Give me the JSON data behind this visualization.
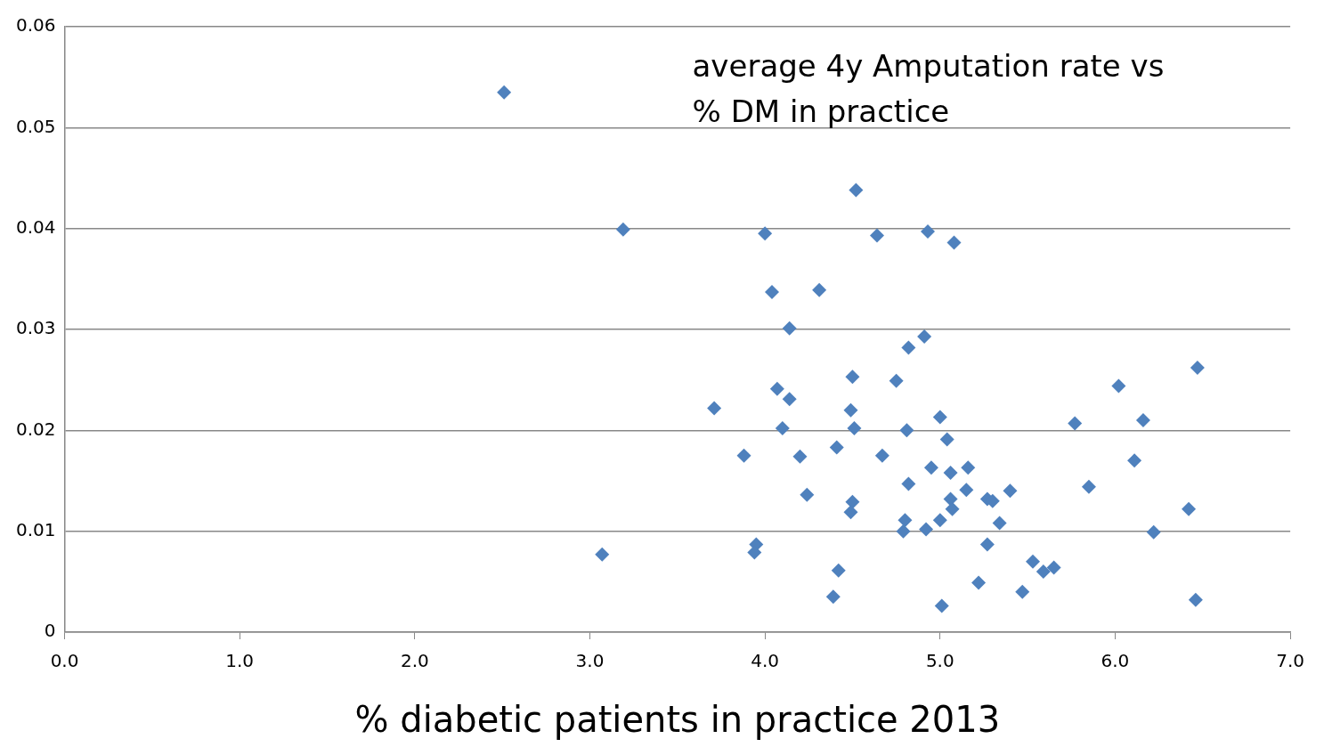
{
  "chart_data": {
    "type": "scatter",
    "title": "average 4y Amputation rate vs\n% DM in practice",
    "xlabel": "% diabetic patients in practice 2013",
    "series": [
      {
        "color": "#4f81bd",
        "x": [
          2.51,
          3.19,
          3.07,
          3.71,
          3.88,
          4.0,
          4.04,
          4.31,
          4.14,
          4.07,
          4.14,
          4.1,
          4.2,
          4.24,
          3.95,
          3.94,
          4.42,
          4.39,
          4.41,
          4.52,
          4.5,
          4.49,
          4.51,
          4.5,
          4.49,
          4.64,
          4.93,
          5.08,
          4.91,
          4.82,
          4.75,
          4.67,
          4.81,
          4.82,
          4.8,
          4.79,
          4.92,
          5.0,
          5.0,
          5.04,
          4.95,
          5.06,
          5.16,
          5.15,
          5.06,
          5.07,
          5.27,
          5.3,
          5.4,
          5.34,
          5.27,
          5.22,
          5.01,
          5.47,
          5.53,
          5.59,
          5.65,
          5.77,
          5.85,
          6.02,
          6.16,
          6.11,
          6.22,
          6.42,
          6.47,
          6.46
        ],
        "values": [
          0.0535,
          0.0399,
          0.0077,
          0.0222,
          0.0175,
          0.0395,
          0.0337,
          0.0339,
          0.0301,
          0.0241,
          0.0231,
          0.0202,
          0.0174,
          0.0136,
          0.0087,
          0.0079,
          0.0061,
          0.0035,
          0.0183,
          0.0438,
          0.0253,
          0.022,
          0.0202,
          0.0129,
          0.0119,
          0.0393,
          0.0397,
          0.0386,
          0.0293,
          0.0282,
          0.0249,
          0.0175,
          0.02,
          0.0147,
          0.0111,
          0.01,
          0.0102,
          0.0111,
          0.0213,
          0.0191,
          0.0163,
          0.0158,
          0.0163,
          0.0141,
          0.0132,
          0.0122,
          0.0132,
          0.013,
          0.014,
          0.0108,
          0.0087,
          0.0049,
          0.0026,
          0.004,
          0.007,
          0.006,
          0.0064,
          0.0207,
          0.0144,
          0.0244,
          0.021,
          0.017,
          0.0099,
          0.0122,
          0.0262,
          0.0032
        ]
      }
    ],
    "xlim": [
      0,
      7
    ],
    "xticks": [
      {
        "value": 0,
        "label": "0.0"
      },
      {
        "value": 1,
        "label": "1.0"
      },
      {
        "value": 2,
        "label": "2.0"
      },
      {
        "value": 3,
        "label": "3.0"
      },
      {
        "value": 4,
        "label": "4.0"
      },
      {
        "value": 5,
        "label": "5.0"
      },
      {
        "value": 6,
        "label": "6.0"
      },
      {
        "value": 7,
        "label": "7.0"
      }
    ],
    "ylim": [
      0,
      0.06
    ],
    "yticks": [
      0,
      0.01,
      0.02,
      0.03,
      0.04,
      0.05,
      0.06
    ],
    "grid": "y",
    "legend": false,
    "marker": "diamond"
  }
}
